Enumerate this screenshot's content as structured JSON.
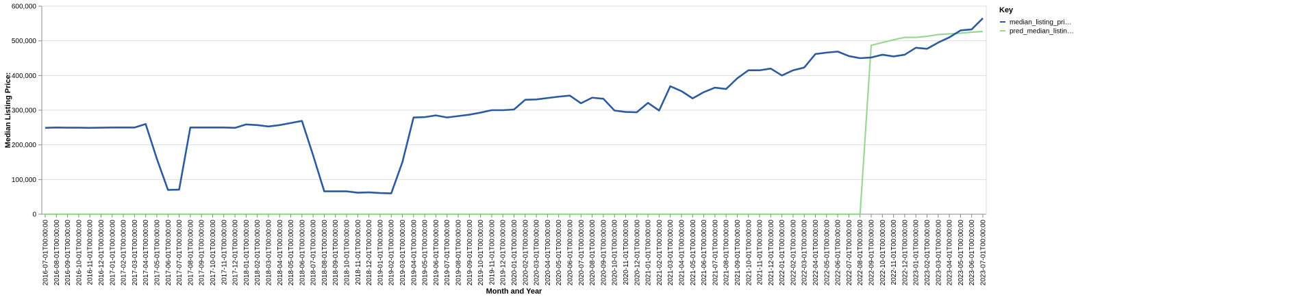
{
  "chart_data": {
    "type": "line",
    "xlabel": "Month and Year",
    "ylabel": "Median Listing Price:",
    "ylim": [
      0,
      600000
    ],
    "y_ticks": [
      "0",
      "100,000",
      "200,000",
      "300,000",
      "400,000",
      "500,000",
      "600,000"
    ],
    "grid": true,
    "legend": {
      "title": "Key",
      "placement": "top-right"
    },
    "x": [
      "2016-07-01T00:00:00",
      "2016-08-01T00:00:00",
      "2016-09-01T00:00:00",
      "2016-10-01T00:00:00",
      "2016-11-01T00:00:00",
      "2016-12-01T00:00:00",
      "2017-01-01T00:00:00",
      "2017-02-01T00:00:00",
      "2017-03-01T00:00:00",
      "2017-04-01T00:00:00",
      "2017-05-01T00:00:00",
      "2017-06-01T00:00:00",
      "2017-07-01T00:00:00",
      "2017-08-01T00:00:00",
      "2017-09-01T00:00:00",
      "2017-10-01T00:00:00",
      "2017-11-01T00:00:00",
      "2017-12-01T00:00:00",
      "2018-01-01T00:00:00",
      "2018-02-01T00:00:00",
      "2018-03-01T00:00:00",
      "2018-04-01T00:00:00",
      "2018-05-01T00:00:00",
      "2018-06-01T00:00:00",
      "2018-07-01T00:00:00",
      "2018-08-01T00:00:00",
      "2018-09-01T00:00:00",
      "2018-10-01T00:00:00",
      "2018-11-01T00:00:00",
      "2018-12-01T00:00:00",
      "2019-01-01T00:00:00",
      "2019-02-01T00:00:00",
      "2019-03-01T00:00:00",
      "2019-04-01T00:00:00",
      "2019-05-01T00:00:00",
      "2019-06-01T00:00:00",
      "2019-07-01T00:00:00",
      "2019-08-01T00:00:00",
      "2019-09-01T00:00:00",
      "2019-10-01T00:00:00",
      "2019-11-01T00:00:00",
      "2019-12-01T00:00:00",
      "2020-01-01T00:00:00",
      "2020-02-01T00:00:00",
      "2020-03-01T00:00:00",
      "2020-04-01T00:00:00",
      "2020-05-01T00:00:00",
      "2020-06-01T00:00:00",
      "2020-07-01T00:00:00",
      "2020-08-01T00:00:00",
      "2020-09-01T00:00:00",
      "2020-10-01T00:00:00",
      "2020-11-01T00:00:00",
      "2020-12-01T00:00:00",
      "2021-01-01T00:00:00",
      "2021-02-01T00:00:00",
      "2021-03-01T00:00:00",
      "2021-04-01T00:00:00",
      "2021-05-01T00:00:00",
      "2021-06-01T00:00:00",
      "2021-07-01T00:00:00",
      "2021-08-01T00:00:00",
      "2021-09-01T00:00:00",
      "2021-10-01T00:00:00",
      "2021-11-01T00:00:00",
      "2021-12-01T00:00:00",
      "2022-01-01T00:00:00",
      "2022-02-01T00:00:00",
      "2022-03-01T00:00:00",
      "2022-04-01T00:00:00",
      "2022-05-01T00:00:00",
      "2022-06-01T00:00:00",
      "2022-07-01T00:00:00",
      "2022-08-01T00:00:00",
      "2022-09-01T00:00:00",
      "2022-10-01T00:00:00",
      "2022-11-01T00:00:00",
      "2022-12-01T00:00:00",
      "2023-01-01T00:00:00",
      "2023-02-01T00:00:00",
      "2023-03-01T00:00:00",
      "2023-04-01T00:00:00",
      "2023-05-01T00:00:00",
      "2023-06-01T00:00:00",
      "2023-07-01T00:00:00"
    ],
    "series": [
      {
        "name": "median_listing_pri…",
        "color": "#2c5aa0",
        "values": [
          249000,
          250000,
          249500,
          249500,
          249000,
          249500,
          250000,
          250000,
          250000,
          260000,
          160000,
          70000,
          71000,
          250000,
          250000,
          250000,
          250000,
          249000,
          259000,
          257000,
          253000,
          257000,
          263000,
          269000,
          170000,
          66000,
          66000,
          66000,
          62000,
          63000,
          61000,
          60000,
          150000,
          279000,
          280000,
          285000,
          279000,
          283000,
          287000,
          293000,
          300000,
          300000,
          302000,
          330000,
          331000,
          335000,
          339000,
          342000,
          320000,
          336000,
          333000,
          299000,
          295000,
          294000,
          321000,
          299000,
          369000,
          355000,
          334000,
          352000,
          365000,
          361000,
          392000,
          415000,
          415000,
          420000,
          400000,
          415000,
          423000,
          462000,
          466000,
          469000,
          456000,
          450000,
          452000,
          460000,
          455000,
          460000,
          480000,
          477000,
          495000,
          510000,
          530000,
          533000,
          565000
        ]
      },
      {
        "name": "pred_median_listin…",
        "color": "#98d895",
        "values": [
          0,
          0,
          0,
          0,
          0,
          0,
          0,
          0,
          0,
          0,
          0,
          0,
          0,
          0,
          0,
          0,
          0,
          0,
          0,
          0,
          0,
          0,
          0,
          0,
          0,
          0,
          0,
          0,
          0,
          0,
          0,
          0,
          0,
          0,
          0,
          0,
          0,
          0,
          0,
          0,
          0,
          0,
          0,
          0,
          0,
          0,
          0,
          0,
          0,
          0,
          0,
          0,
          0,
          0,
          0,
          0,
          0,
          0,
          0,
          0,
          0,
          0,
          0,
          0,
          0,
          0,
          0,
          0,
          0,
          0,
          0,
          0,
          0,
          0,
          487000,
          495000,
          503000,
          510000,
          510000,
          513000,
          518000,
          520000,
          522000,
          525000,
          527000
        ]
      }
    ]
  }
}
